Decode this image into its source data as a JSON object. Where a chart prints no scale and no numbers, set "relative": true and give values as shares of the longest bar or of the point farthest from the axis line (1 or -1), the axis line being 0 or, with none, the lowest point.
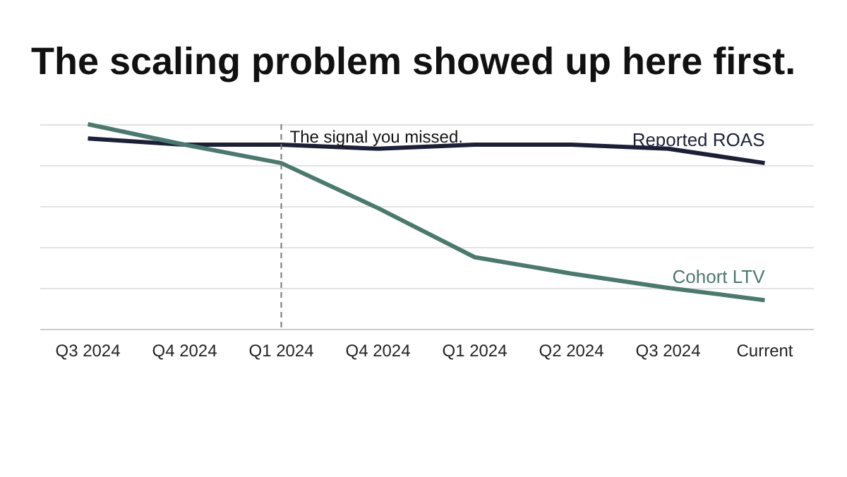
{
  "chart_data": {
    "type": "line",
    "title": "The scaling problem showed up here first.",
    "relative": true,
    "grid": true,
    "legend": false,
    "categories": [
      "Q3 2024",
      "Q4 2024",
      "Q1 2024",
      "Q4 2024",
      "Q1 2024",
      "Q2 2024",
      "Q3 2024",
      "Current"
    ],
    "series": [
      {
        "name": "Reported ROAS",
        "color": "#1b2038",
        "values": [
          0.93,
          0.9,
          0.9,
          0.88,
          0.9,
          0.9,
          0.88,
          0.81
        ]
      },
      {
        "name": "Cohort LTV",
        "color": "#4a7a6e",
        "values": [
          1,
          0.9,
          0.81,
          0.59,
          0.35,
          0.27,
          0.2,
          0.14
        ]
      }
    ],
    "ref_lines": [
      {
        "axis": "x",
        "value": "Q1 2024",
        "label": "The signal you missed.",
        "line_style": "dashed",
        "color": "#777777"
      }
    ]
  }
}
